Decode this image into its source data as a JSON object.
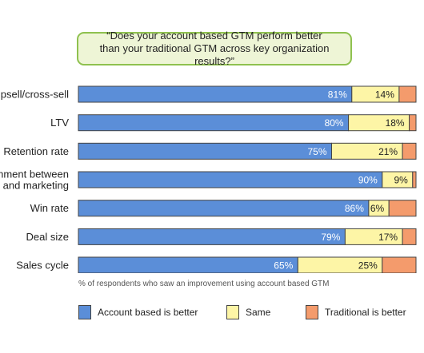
{
  "question": "“Does your account based GTM perform better\nthan your traditional GTM across key organization results?”",
  "footnote": "% of respondents who saw an improvement using account based GTM",
  "colors": {
    "better": "#5b8ed8",
    "same": "#fdf5a6",
    "traditional": "#f49b6c",
    "question_bg": "#eef5d6",
    "question_border": "#8fc14f"
  },
  "chart_data": {
    "type": "bar",
    "orientation": "horizontal",
    "stacked": true,
    "categories": [
      [
        "Upsell/cross-sell"
      ],
      [
        "LTV"
      ],
      [
        "Retention rate"
      ],
      [
        "Alignment between",
        "sales and marketing"
      ],
      [
        "Win rate"
      ],
      [
        "Deal size"
      ],
      [
        "Sales cycle"
      ]
    ],
    "series": [
      {
        "name": "Account based is better",
        "values": [
          81,
          80,
          75,
          90,
          86,
          79,
          65
        ]
      },
      {
        "name": "Same",
        "values": [
          14,
          18,
          21,
          9,
          6,
          17,
          25
        ]
      },
      {
        "name": "Traditional is better",
        "values": [
          5,
          2,
          4,
          1,
          8,
          4,
          10
        ]
      }
    ],
    "value_suffix": "%",
    "xlim": [
      0,
      100
    ],
    "grid": false,
    "legend": "bottom"
  }
}
